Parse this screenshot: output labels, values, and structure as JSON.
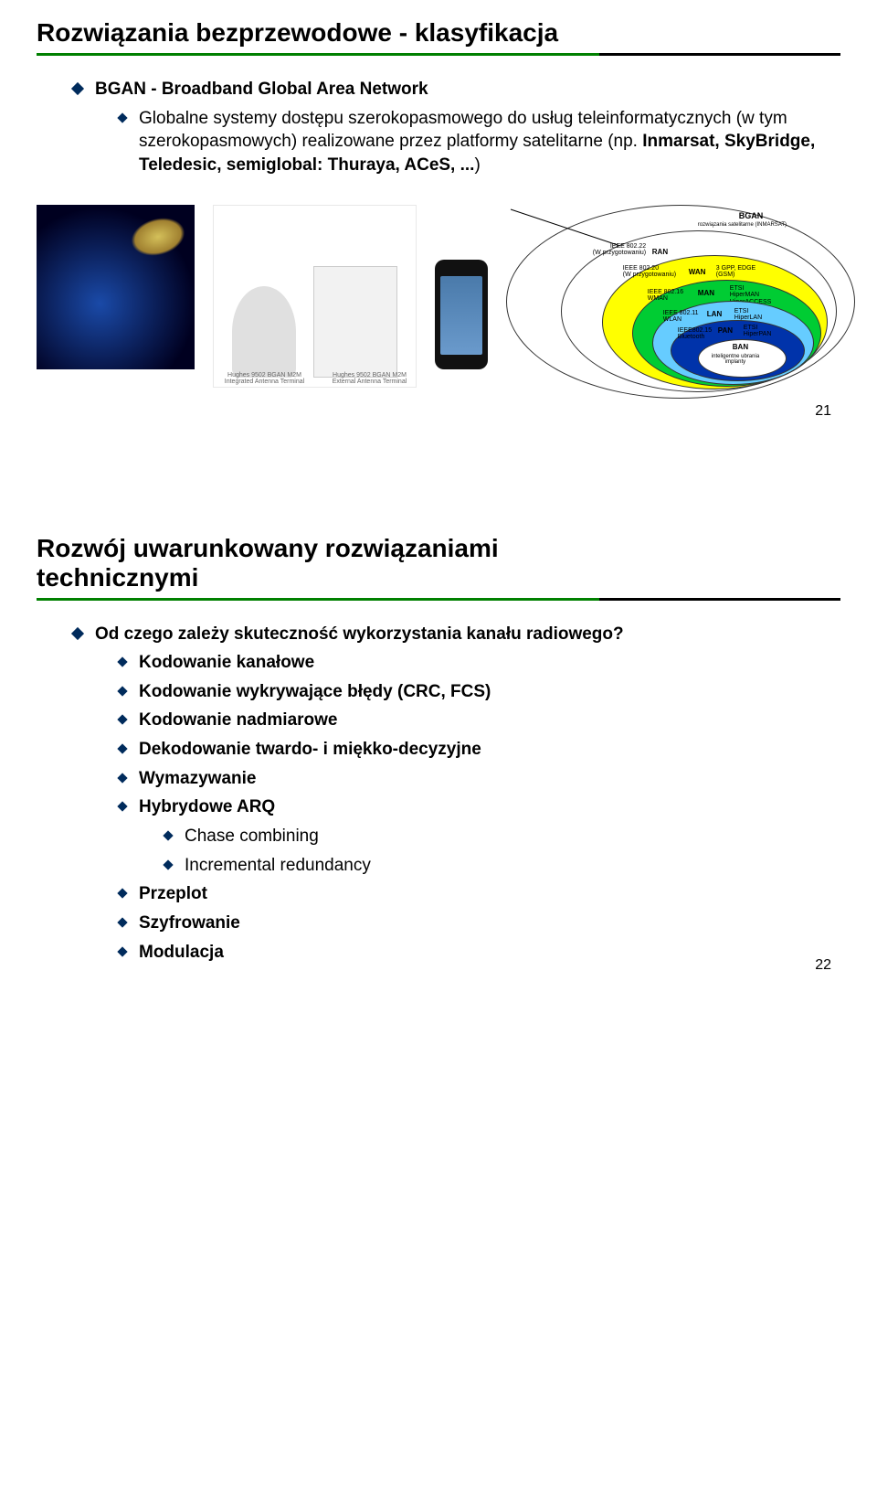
{
  "slide1": {
    "title": "Rozwiązania bezprzewodowe - klasyfikacja",
    "bullet1": "BGAN - Broadband Global Area Network",
    "bullet2_a": "Globalne systemy dostępu szerokopasmowego do usług teleinformatycznych (w tym szerokopasmowych) realizowane przez platformy satelitarne (np. ",
    "bullet2_b": "Inmarsat, SkyBridge, Teledesic, semiglobal: Thuraya, ACeS, ...",
    "bullet2_c": ")",
    "term_label_1": "Hughes 9502 BGAN M2M\nIntegrated Antenna Terminal",
    "term_label_2": "Hughes 9502 BGAN M2M\nExternal Antenna Terminal",
    "diagram": {
      "bgan_title": "BGAN",
      "bgan_sub": "rozwiązania satelitarne (INMARSAT)",
      "ran_l": "IEEE 802.22\n(W przygotowaniu)",
      "ran_r": "RAN",
      "wan_l": "IEEE 802.20\n(W przygotowaniu)",
      "wan_r": "WAN",
      "wan_rr": "3 GPP, EDGE\n(GSM)",
      "man_l": "IEEE 802.16\nWMAN",
      "man_r": "MAN",
      "man_rr": "ETSI\nHiperMAN\nHiperACCESS",
      "lan_l": "IEEE 802.11\nWLAN",
      "lan_r": "LAN",
      "lan_rr": "ETSI\nHiperLAN",
      "pan_l": "IEEE802.15\nBluetooth",
      "pan_r": "PAN",
      "pan_rr": "ETSI\nHiperPAN",
      "ban": "BAN",
      "ban_sub": "inteligentne ubrania\nimplanty",
      "colors": {
        "outer": "#ffffff",
        "ran": "#ffffff",
        "wan": "#ffff00",
        "man": "#00cc33",
        "lan": "#66ccff",
        "pan": "#0033aa",
        "ban": "#ffffff"
      }
    },
    "num": "21"
  },
  "slide2": {
    "title_l1": "Rozwój uwarunkowany rozwiązaniami",
    "title_l2": "technicznymi",
    "q": "Od czego zależy skuteczność wykorzystania kanału radiowego?",
    "items": [
      "Kodowanie kanałowe",
      "Kodowanie wykrywające błędy (CRC, FCS)",
      "Kodowanie nadmiarowe",
      "Dekodowanie twardo- i miękko-decyzyjne",
      "Wymazywanie",
      "Hybrydowe ARQ"
    ],
    "sub_items": [
      "Chase combining",
      "Incremental redundancy"
    ],
    "items2": [
      "Przeplot",
      "Szyfrowanie",
      "Modulacja"
    ],
    "num": "22"
  }
}
